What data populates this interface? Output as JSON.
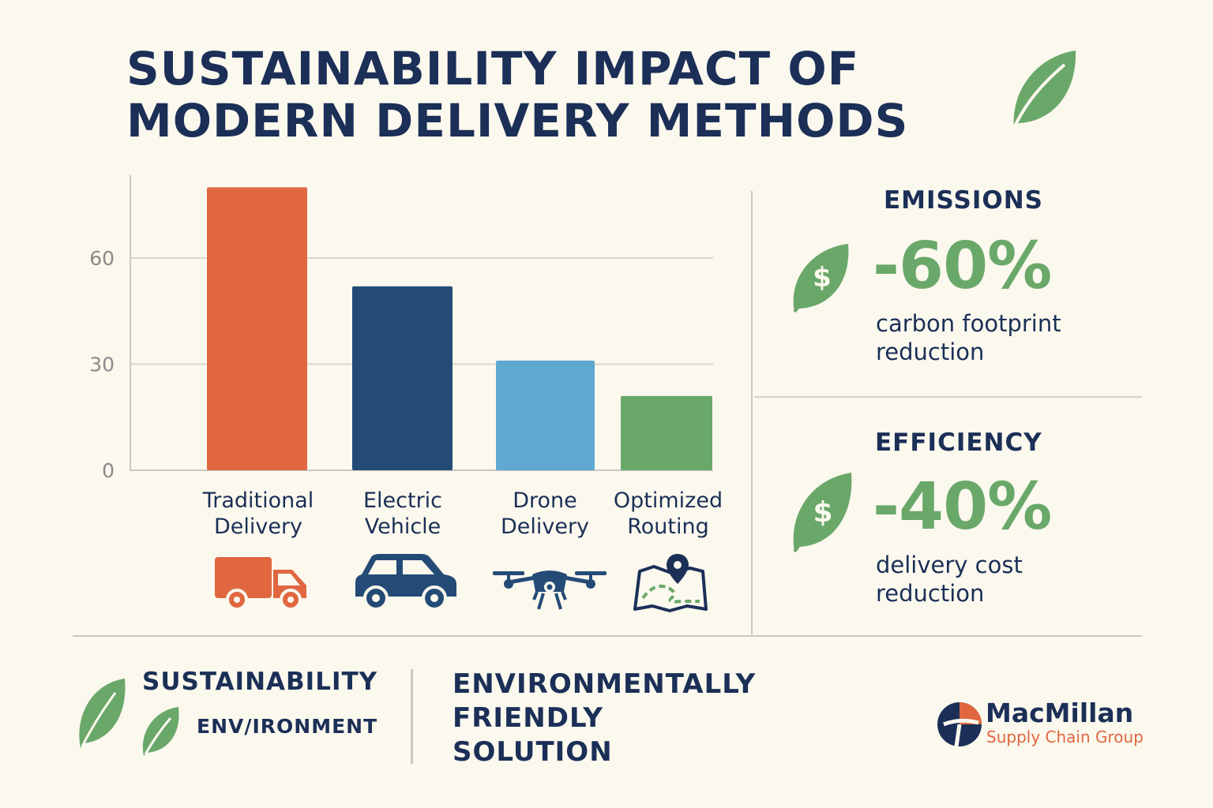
{
  "title": {
    "line1": "SUSTAINABILITY IMPACT OF",
    "line2": "MODERN DELIVERY METHODS"
  },
  "chart_data": {
    "type": "bar",
    "title": "",
    "xlabel": "",
    "ylabel": "",
    "ylim": [
      0,
      80
    ],
    "yticks": [
      0,
      30,
      60
    ],
    "grid": true,
    "categories": [
      [
        "Traditional",
        "Delivery"
      ],
      [
        "Electric",
        "Vehicle"
      ],
      [
        "Drone",
        "Delivery"
      ],
      [
        "Optimized",
        "Routing"
      ]
    ],
    "values": [
      80,
      52,
      31,
      21
    ],
    "colors": [
      "#e0673f",
      "#234b76",
      "#5ea8d2",
      "#6aa86a"
    ],
    "icons": [
      "truck-icon",
      "car-icon",
      "drone-icon",
      "map-route-icon"
    ]
  },
  "stats": [
    {
      "heading": "EMISSIONS",
      "value": "-60%",
      "desc": "carbon footprint reduction",
      "icon": "leaf-dollar-icon"
    },
    {
      "heading": "EFFICIENCY",
      "value": "-40%",
      "desc": "delivery cost reduction",
      "icon": "leaf-dollar-icon"
    }
  ],
  "footer": {
    "sustainability": "SUSTAINABILITY",
    "environment": "ENV/IRONMENT",
    "solution_lines": [
      "ENVIRONMENTALLY",
      "FRIENDLY",
      "SOLUTION"
    ]
  },
  "brand": {
    "name": "MacMillan",
    "subtitle": "Supply Chain Group"
  },
  "colors": {
    "navy": "#1b2f57",
    "green": "#6aa86a",
    "orange": "#e0673f",
    "background": "#fbf8ee"
  }
}
